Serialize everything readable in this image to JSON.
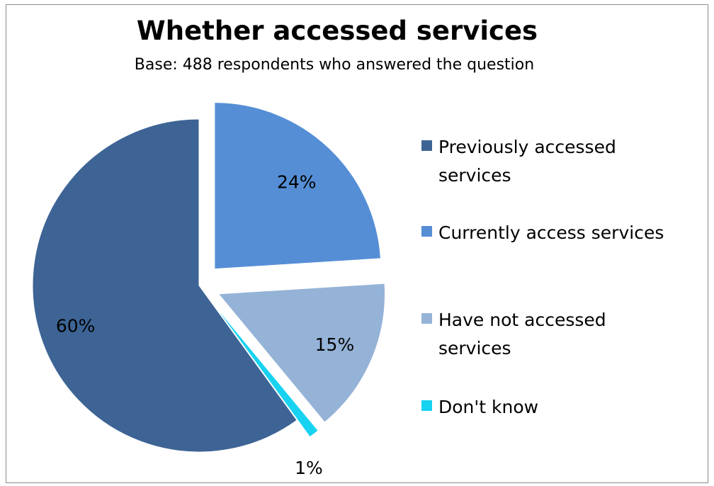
{
  "chart_data": {
    "type": "pie",
    "title": "Whether accessed services",
    "subtitle": "Base: 488 respondents who answered the question",
    "legend_position": "right",
    "slices": [
      {
        "label": "Previously accessed services",
        "legend_lines": [
          "Previously accessed",
          "services"
        ],
        "value": 60,
        "value_label": "60%",
        "color": "#3d6495"
      },
      {
        "label": "Currently access services",
        "legend_lines": [
          "Currently access services"
        ],
        "value": 24,
        "value_label": "24%",
        "color": "#558ed5"
      },
      {
        "label": "Have not accessed services",
        "legend_lines": [
          "Have not accessed",
          "services"
        ],
        "value": 15,
        "value_label": "15%",
        "color": "#95b3d7"
      },
      {
        "label": "Don't know",
        "legend_lines": [
          "Don't know"
        ],
        "value": 1,
        "value_label": "1%",
        "color": "#17d2f0"
      }
    ]
  }
}
